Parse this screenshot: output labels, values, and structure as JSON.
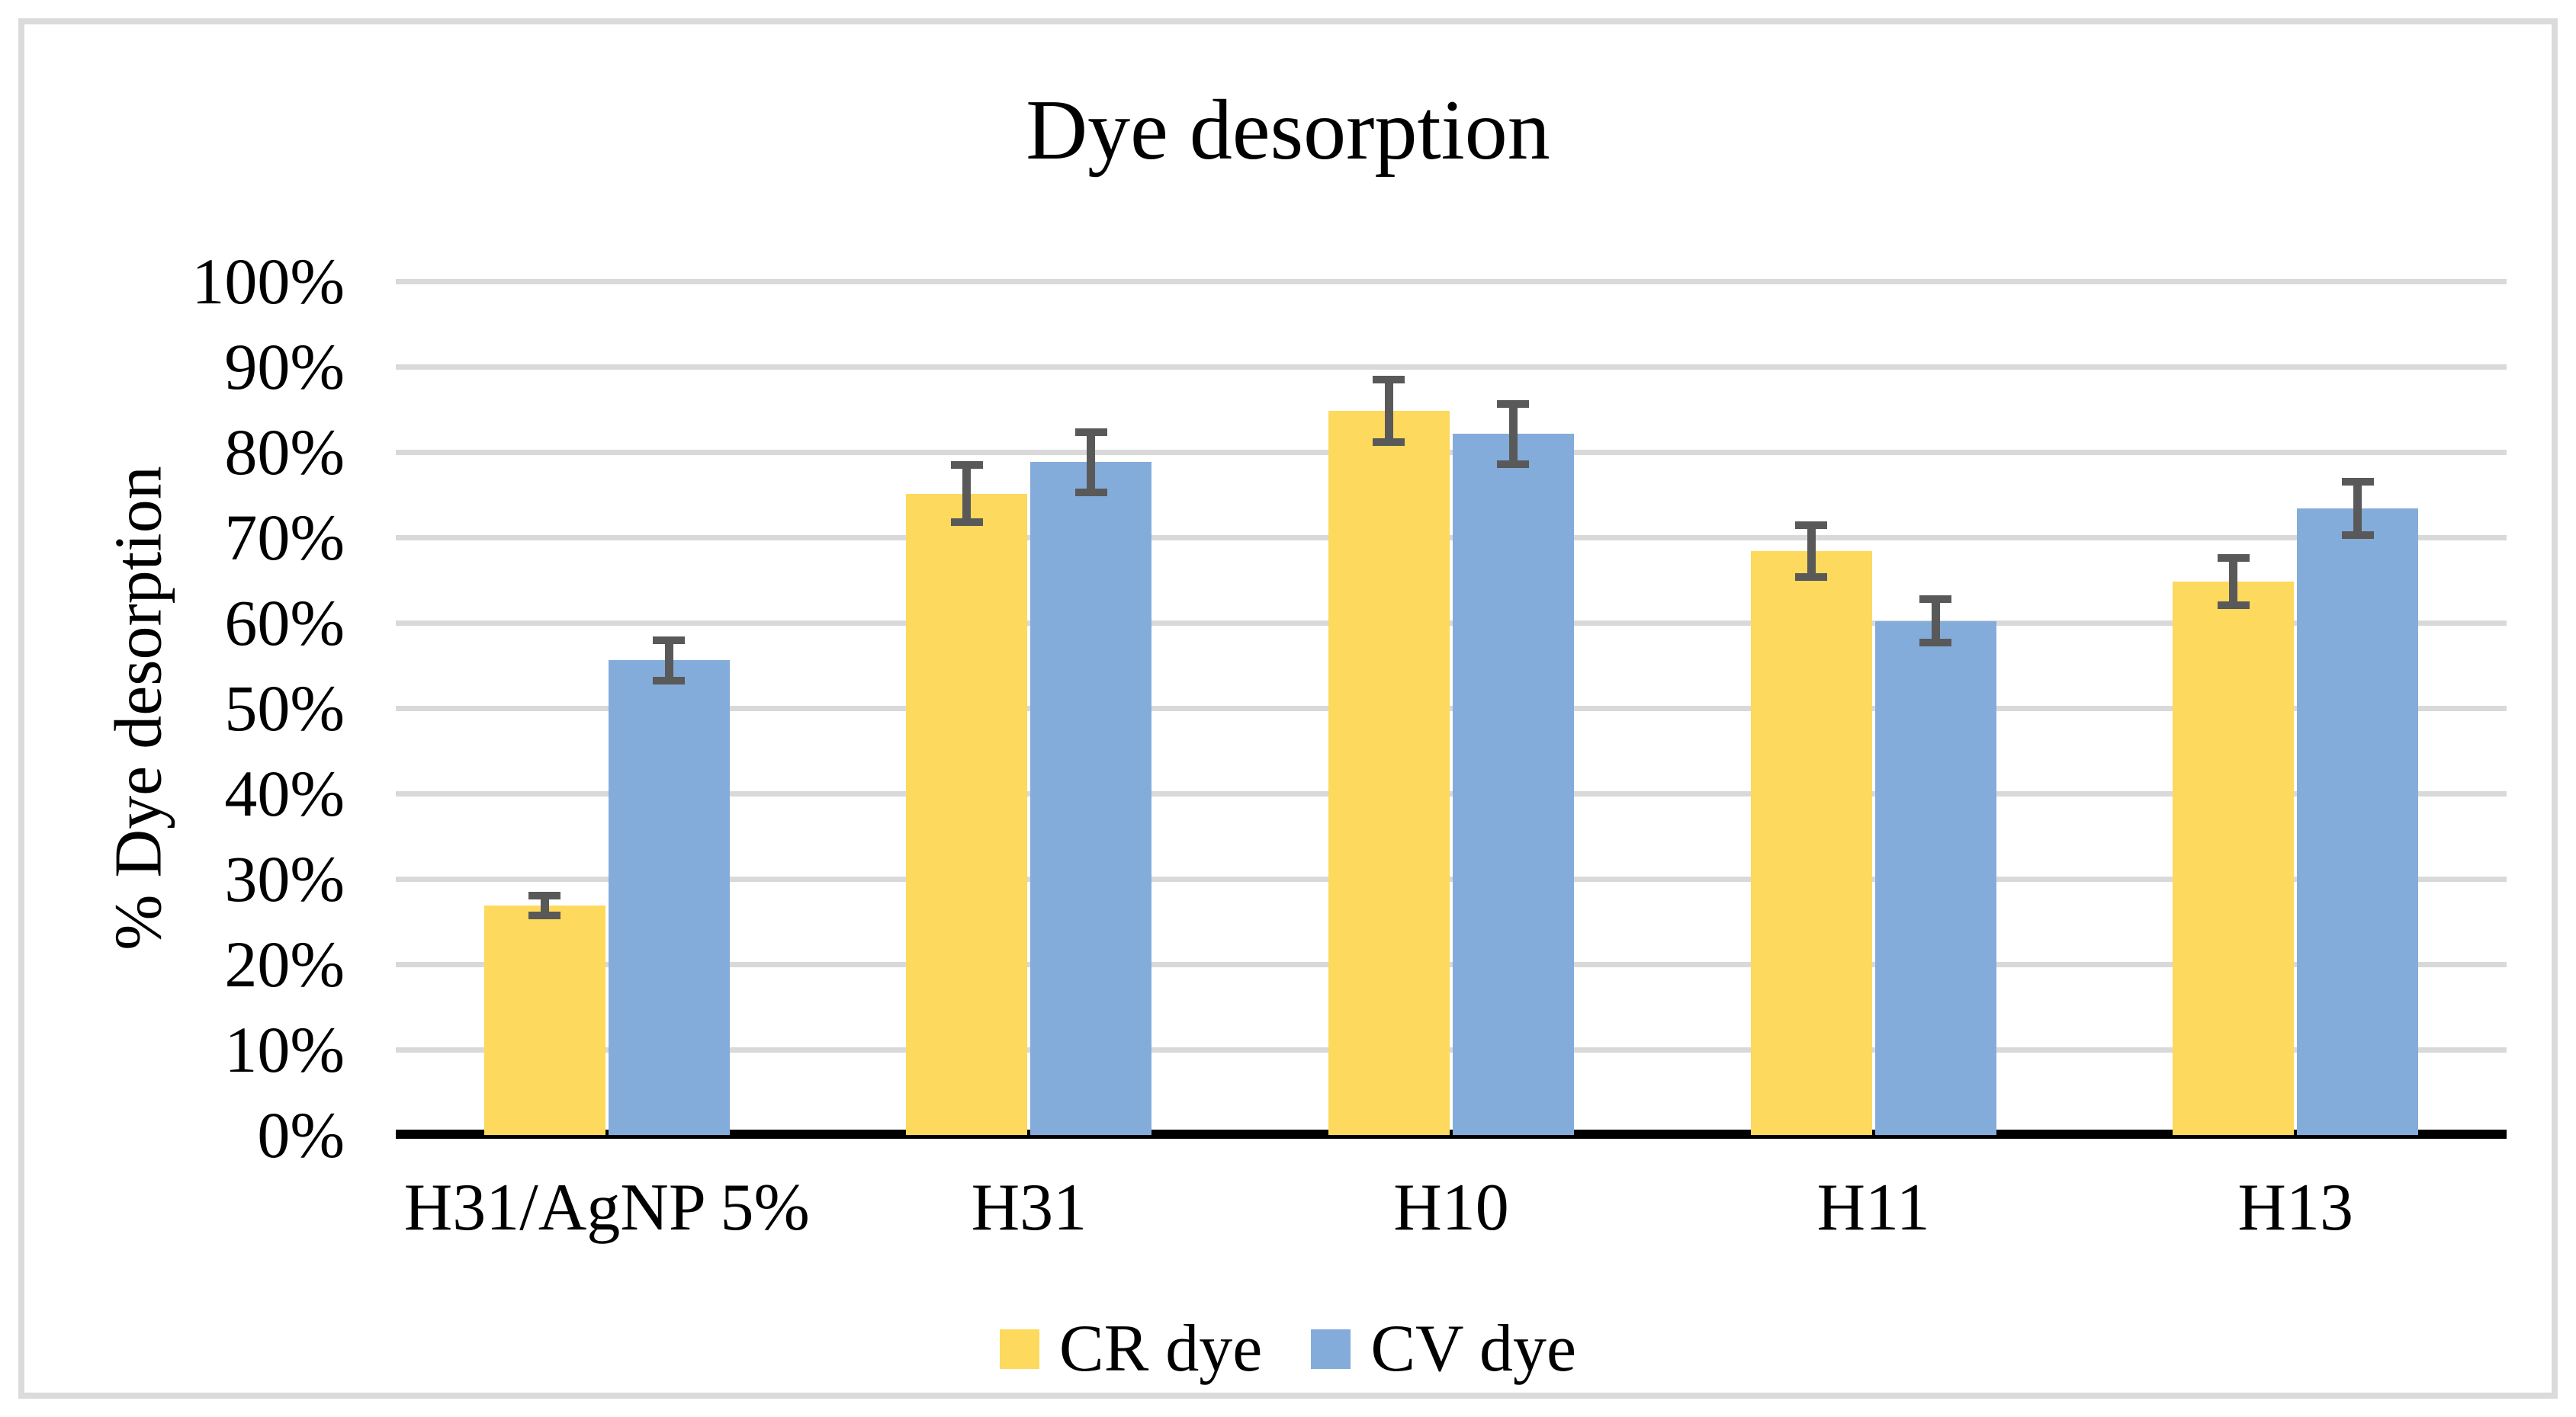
{
  "chart_data": {
    "type": "bar",
    "title": "Dye desorption",
    "xlabel": "",
    "ylabel": "% Dye desorption",
    "ylim": [
      0,
      100
    ],
    "grid": true,
    "legend_position": "bottom",
    "categories": [
      "H31/AgNP 5%",
      "H31",
      "H10",
      "H11",
      "H13"
    ],
    "series": [
      {
        "name": "CR dye",
        "color": "#FDD95D",
        "values": [
          26.9,
          75.1,
          84.8,
          68.4,
          64.8
        ],
        "errors": [
          1.6,
          3.8,
          4.1,
          3.5,
          3.2
        ]
      },
      {
        "name": "CV dye",
        "color": "#84ACDB",
        "values": [
          55.6,
          78.8,
          82.1,
          60.2,
          73.4
        ],
        "errors": [
          2.8,
          4.0,
          4.0,
          3.0,
          3.6
        ]
      }
    ],
    "yticks": [
      {
        "value": 0,
        "label": "0%"
      },
      {
        "value": 10,
        "label": "10%"
      },
      {
        "value": 20,
        "label": "20%"
      },
      {
        "value": 30,
        "label": "30%"
      },
      {
        "value": 40,
        "label": "40%"
      },
      {
        "value": 50,
        "label": "50%"
      },
      {
        "value": 60,
        "label": "60%"
      },
      {
        "value": 70,
        "label": "70%"
      },
      {
        "value": 80,
        "label": "80%"
      },
      {
        "value": 90,
        "label": "90%"
      },
      {
        "value": 100,
        "label": "100%"
      }
    ]
  },
  "colors": {
    "gridline": "#D9D9D9",
    "axis_line": "#000000",
    "error_bar": "#595959",
    "figure_border": "#DBDBDB",
    "background": "#FFFFFF",
    "text": "#000000"
  }
}
